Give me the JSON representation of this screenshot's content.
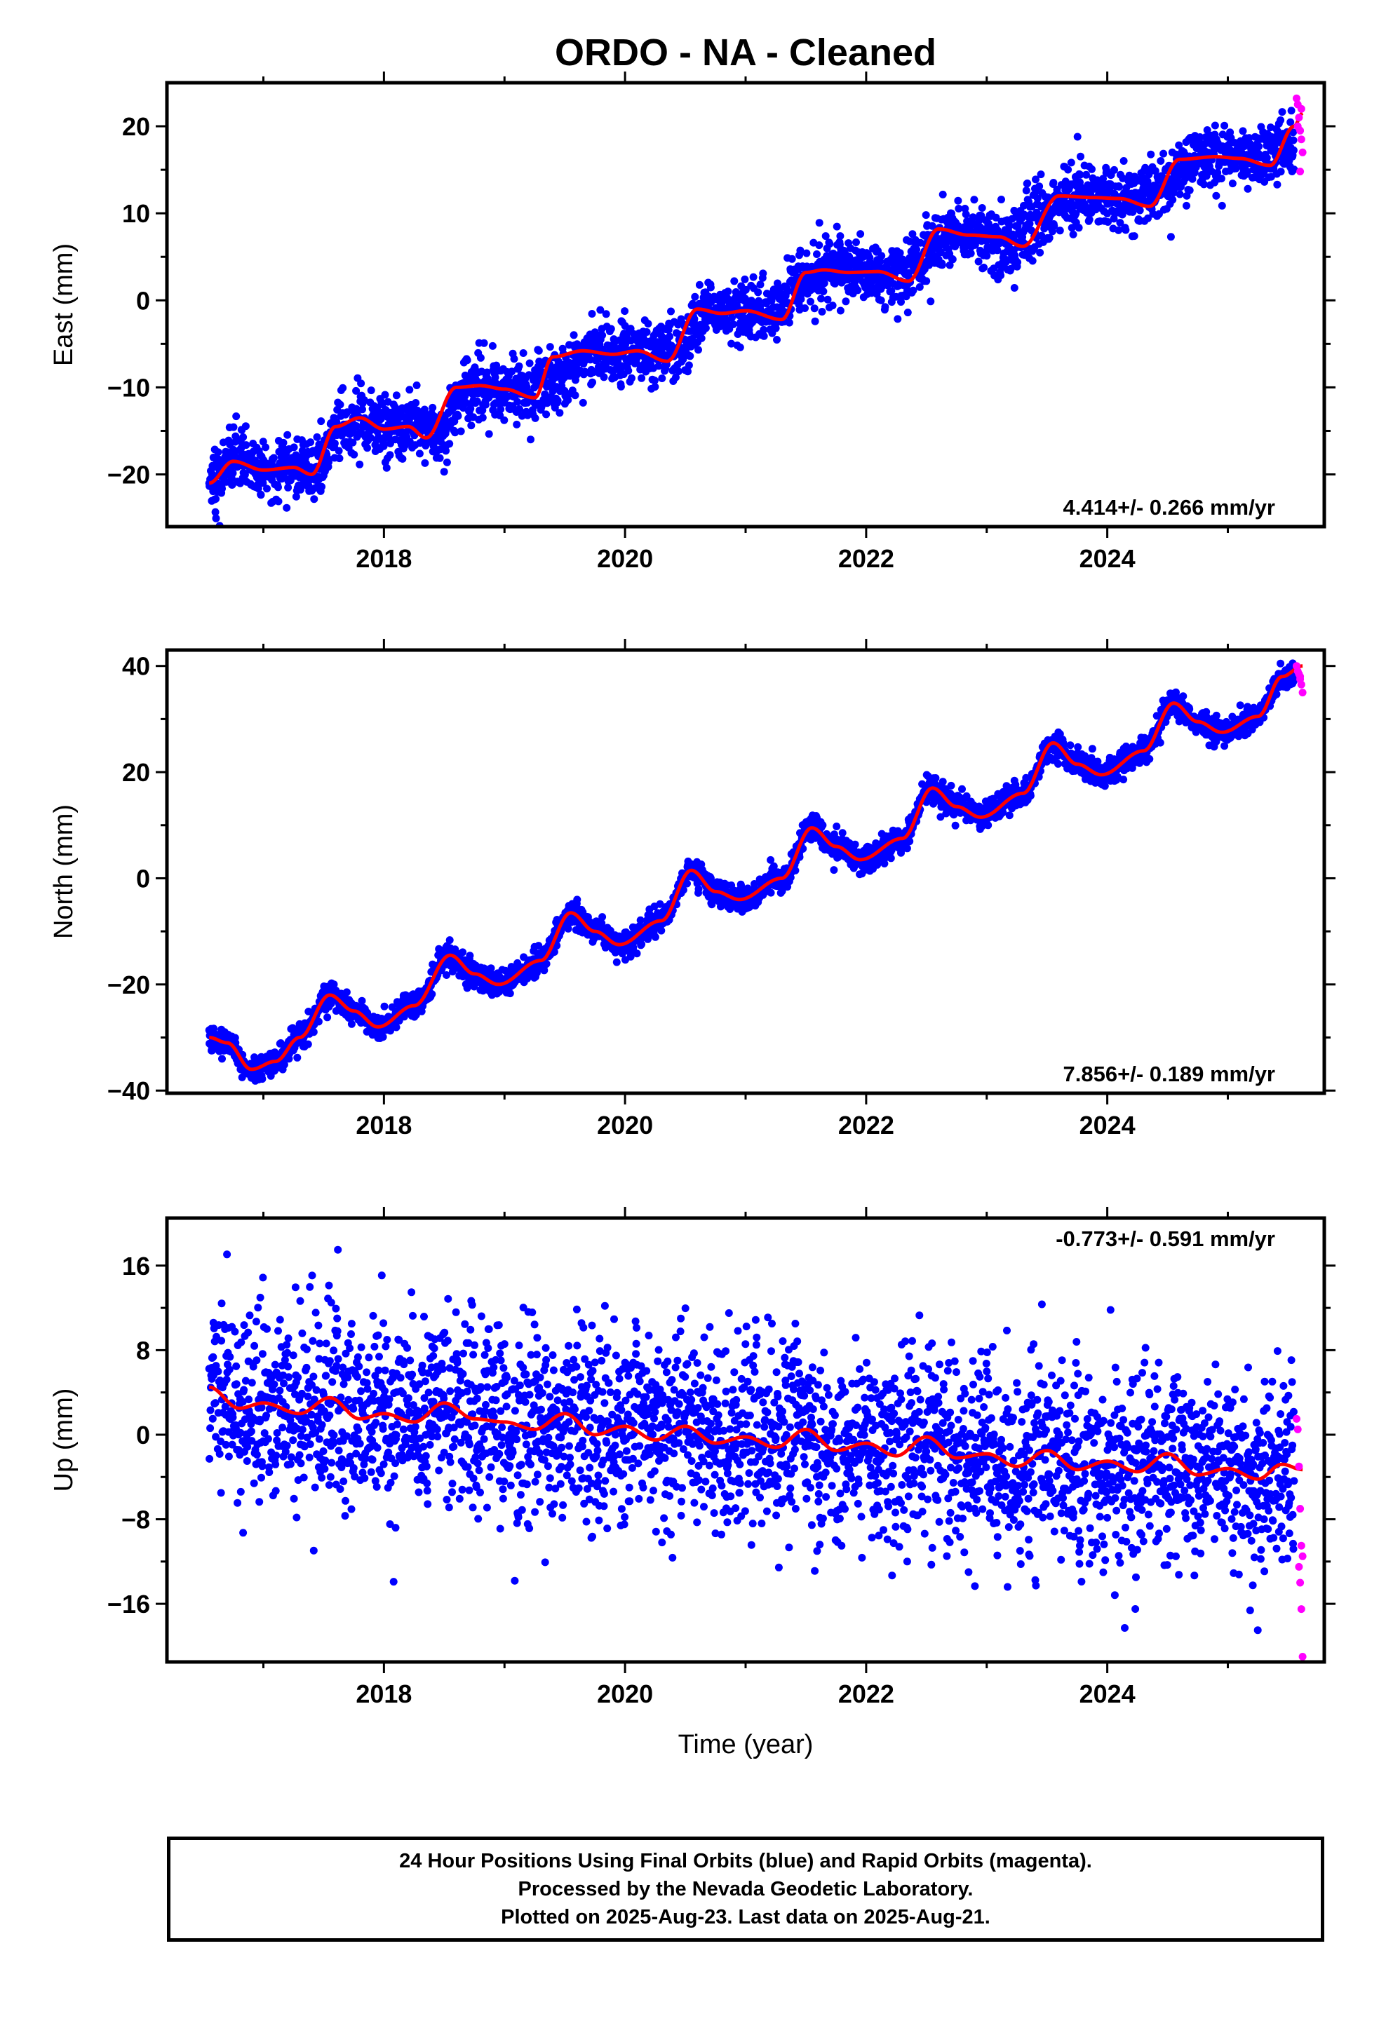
{
  "title": "ORDO  - NA - Cleaned",
  "colors": {
    "final_orbits": "#0000ff",
    "rapid_orbits": "#ff00ff",
    "model": "#ff0000",
    "axis": "#000000"
  },
  "caption": [
    "24 Hour Positions Using Final Orbits (blue) and Rapid Orbits (magenta).",
    "Processed by the Nevada Geodetic Laboratory.",
    "Plotted on 2025-Aug-23. Last data on 2025-Aug-21."
  ],
  "chart_data": [
    {
      "type": "scatter",
      "ylabel": "East (mm)",
      "rate_label": "4.414+/- 0.266 mm/yr",
      "xlim": [
        2016.2,
        2025.8
      ],
      "ylim": [
        -26,
        25
      ],
      "x_ticks": [
        2018,
        2020,
        2022,
        2024
      ],
      "x_tick_labels": [
        "2018",
        "2020",
        "2022",
        "2024"
      ],
      "y_ticks": [
        -20,
        -10,
        0,
        10,
        20
      ],
      "y_tick_labels": [
        "−20",
        "−10",
        "0",
        "10",
        "20"
      ],
      "model": {
        "name": "trend fit",
        "x": [
          2016.55,
          2016.75,
          2017.0,
          2017.25,
          2017.4,
          2017.6,
          2017.8,
          2018.0,
          2018.2,
          2018.35,
          2018.6,
          2018.8,
          2019.0,
          2019.25,
          2019.4,
          2019.65,
          2019.9,
          2020.1,
          2020.35,
          2020.6,
          2020.8,
          2021.0,
          2021.3,
          2021.5,
          2021.65,
          2021.85,
          2022.1,
          2022.35,
          2022.6,
          2022.85,
          2023.1,
          2023.3,
          2023.6,
          2023.9,
          2024.1,
          2024.35,
          2024.6,
          2024.9,
          2025.1,
          2025.35,
          2025.55,
          2025.62
        ],
        "y": [
          -21,
          -18.5,
          -19.5,
          -19.2,
          -20,
          -14.5,
          -13.5,
          -14.8,
          -14.5,
          -15.8,
          -10,
          -9.8,
          -10.2,
          -11.2,
          -6.5,
          -5.8,
          -6.2,
          -5.8,
          -7,
          -1,
          -1.5,
          -1.2,
          -2.2,
          3.2,
          3.5,
          3.2,
          3.3,
          2.2,
          8.2,
          7.5,
          7.3,
          6.2,
          12,
          11.8,
          11.7,
          10.8,
          16.2,
          16.5,
          16.3,
          15.5,
          20,
          21.5
        ]
      },
      "final_summary": {
        "name": "daily positions (final orbits)",
        "x": [
          2016.55,
          2016.75,
          2017.0,
          2017.25,
          2017.45,
          2017.65,
          2017.85,
          2018.0,
          2018.25,
          2018.45,
          2018.7,
          2018.9,
          2019.2,
          2019.45,
          2019.7,
          2019.95,
          2020.2,
          2020.45,
          2020.7,
          2020.95,
          2021.2,
          2021.45,
          2021.7,
          2021.95,
          2022.2,
          2022.45,
          2022.7,
          2022.95,
          2023.2,
          2023.45,
          2023.7,
          2023.95,
          2024.2,
          2024.45,
          2024.7,
          2024.95,
          2025.2,
          2025.45
        ],
        "y": [
          -21,
          -18.5,
          -19.5,
          -19.2,
          -19.5,
          -14.2,
          -13.8,
          -14.8,
          -14.6,
          -15.5,
          -9.8,
          -10,
          -10.4,
          -9,
          -5.8,
          -6,
          -6,
          -5.5,
          -0.8,
          -1.4,
          -1.4,
          2,
          3.4,
          3.2,
          3,
          4.5,
          8,
          7.4,
          6.8,
          9.5,
          12,
          11.8,
          11.5,
          13,
          16.3,
          16.4,
          16,
          17.5
        ],
        "scatter_mm": 1.8
      },
      "rapid_points": {
        "name": "daily positions (rapid orbits)",
        "x": [
          2025.57,
          2025.58,
          2025.59,
          2025.6,
          2025.61,
          2025.62,
          2025.6,
          2025.58,
          2025.61
        ],
        "y": [
          23.2,
          22.5,
          21,
          19.5,
          18.5,
          17,
          14.8,
          20,
          22
        ]
      }
    },
    {
      "type": "scatter",
      "ylabel": "North (mm)",
      "rate_label": "7.856+/- 0.189 mm/yr",
      "xlim": [
        2016.2,
        2025.8
      ],
      "ylim": [
        -40.5,
        43
      ],
      "x_ticks": [
        2018,
        2020,
        2022,
        2024
      ],
      "x_tick_labels": [
        "2018",
        "2020",
        "2022",
        "2024"
      ],
      "y_ticks": [
        -40,
        -20,
        0,
        20,
        40
      ],
      "y_tick_labels": [
        "−40",
        "−20",
        "0",
        "20",
        "40"
      ],
      "model": {
        "name": "trend fit",
        "x": [
          2016.55,
          2016.7,
          2016.9,
          2017.1,
          2017.3,
          2017.55,
          2017.75,
          2017.95,
          2018.25,
          2018.55,
          2018.75,
          2018.95,
          2019.3,
          2019.55,
          2019.75,
          2019.95,
          2020.3,
          2020.55,
          2020.75,
          2020.95,
          2021.3,
          2021.55,
          2021.75,
          2021.95,
          2022.3,
          2022.55,
          2022.75,
          2022.95,
          2023.3,
          2023.55,
          2023.75,
          2023.95,
          2024.3,
          2024.55,
          2024.75,
          2024.95,
          2025.25,
          2025.45,
          2025.62
        ],
        "y": [
          -30,
          -31,
          -36,
          -34.5,
          -30,
          -22,
          -25,
          -28,
          -24,
          -14.5,
          -18,
          -20,
          -15.5,
          -6.5,
          -10,
          -12.5,
          -8,
          1.5,
          -2.5,
          -4,
          0,
          9.5,
          6,
          3.5,
          7.5,
          17,
          13.5,
          11.5,
          16,
          25.5,
          21.5,
          19.5,
          24,
          33,
          29.5,
          27.5,
          30.5,
          38,
          40
        ]
      },
      "final_summary": {
        "name": "daily positions (final orbits)",
        "x": [
          2016.55,
          2016.7,
          2016.9,
          2017.1,
          2017.3,
          2017.55,
          2017.75,
          2017.95,
          2018.25,
          2018.55,
          2018.75,
          2018.95,
          2019.3,
          2019.55,
          2019.75,
          2019.95,
          2020.3,
          2020.55,
          2020.75,
          2020.95,
          2021.3,
          2021.55,
          2021.75,
          2021.95,
          2022.3,
          2022.55,
          2022.75,
          2022.95,
          2023.3,
          2023.55,
          2023.75,
          2023.95,
          2024.3,
          2024.55,
          2024.75,
          2024.95,
          2025.25,
          2025.45
        ],
        "y": [
          -30,
          -31,
          -36,
          -34.5,
          -30,
          -22,
          -25,
          -28,
          -24,
          -14.5,
          -18,
          -20,
          -15.5,
          -6.5,
          -10,
          -12.5,
          -8,
          1.5,
          -2.5,
          -4,
          0,
          9.5,
          6,
          3.5,
          7.5,
          17,
          13.5,
          11.5,
          16,
          25.5,
          21.5,
          19.5,
          24,
          33,
          29.5,
          27.5,
          30.5,
          38
        ],
        "scatter_mm": 1.2
      },
      "rapid_points": {
        "name": "daily positions (rapid orbits)",
        "x": [
          2025.57,
          2025.58,
          2025.59,
          2025.6,
          2025.61,
          2025.62,
          2025.6
        ],
        "y": [
          40,
          39,
          38.5,
          37.5,
          36.5,
          35,
          38
        ]
      }
    },
    {
      "type": "scatter",
      "ylabel": "Up (mm)",
      "xlabel": "Time (year)",
      "rate_label": "-0.773+/- 0.591 mm/yr",
      "xlim": [
        2016.2,
        2025.8
      ],
      "ylim": [
        -21.5,
        20.5
      ],
      "x_ticks": [
        2018,
        2020,
        2022,
        2024
      ],
      "x_tick_labels": [
        "2018",
        "2020",
        "2022",
        "2024"
      ],
      "y_ticks": [
        -16,
        -8,
        0,
        8,
        16
      ],
      "y_tick_labels": [
        "−16",
        "−8",
        "0",
        "8",
        "16"
      ],
      "model": {
        "name": "trend fit",
        "x": [
          2016.55,
          2016.8,
          2017.0,
          2017.3,
          2017.55,
          2017.8,
          2018.0,
          2018.25,
          2018.5,
          2018.75,
          2019.0,
          2019.25,
          2019.5,
          2019.75,
          2020.0,
          2020.25,
          2020.5,
          2020.75,
          2021.0,
          2021.25,
          2021.5,
          2021.75,
          2022.0,
          2022.25,
          2022.5,
          2022.75,
          2023.0,
          2023.25,
          2023.5,
          2023.75,
          2024.0,
          2024.25,
          2024.5,
          2024.75,
          2025.0,
          2025.25,
          2025.45,
          2025.62
        ],
        "y": [
          4.5,
          2.5,
          3,
          2,
          3.5,
          1.5,
          2,
          1.2,
          3,
          1.5,
          1.2,
          0.5,
          2,
          0,
          0.8,
          -0.5,
          0.8,
          -0.8,
          -0.2,
          -1.2,
          0.5,
          -1.5,
          -0.8,
          -2,
          -0.2,
          -2.2,
          -1.8,
          -3,
          -1.5,
          -3.3,
          -2.5,
          -3.5,
          -1.8,
          -3.8,
          -3.2,
          -4.2,
          -2.8,
          -3.3
        ]
      },
      "final_summary": {
        "name": "daily positions (final orbits)",
        "x": [
          2016.55,
          2016.8,
          2017.0,
          2017.3,
          2017.55,
          2017.8,
          2018.0,
          2018.25,
          2018.5,
          2018.75,
          2019.0,
          2019.25,
          2019.5,
          2019.75,
          2020.0,
          2020.25,
          2020.5,
          2020.75,
          2021.0,
          2021.25,
          2021.5,
          2021.75,
          2022.0,
          2022.25,
          2022.5,
          2022.75,
          2023.0,
          2023.25,
          2023.5,
          2023.75,
          2024.0,
          2024.25,
          2024.5,
          2024.75,
          2025.0,
          2025.25,
          2025.45
        ],
        "y": [
          4.5,
          2.5,
          3,
          2,
          3.5,
          1.5,
          2,
          1.2,
          3,
          1.5,
          1.2,
          0.5,
          2,
          0,
          0.8,
          -0.5,
          0.8,
          -0.8,
          -0.2,
          -1.2,
          0.5,
          -1.5,
          -0.8,
          -2,
          -0.2,
          -2.2,
          -1.8,
          -3,
          -1.5,
          -3.3,
          -2.5,
          -3.5,
          -1.8,
          -3.8,
          -3.2,
          -4.2,
          -2.8
        ],
        "scatter_mm": 4.5
      },
      "rapid_points": {
        "name": "daily positions (rapid orbits)",
        "x": [
          2025.57,
          2025.58,
          2025.59,
          2025.6,
          2025.61,
          2025.62,
          2025.59,
          2025.6,
          2025.61,
          2025.62
        ],
        "y": [
          1.5,
          0.5,
          -3,
          -7,
          -10.5,
          -11.5,
          -12.5,
          -14,
          -16.5,
          -21
        ]
      }
    }
  ]
}
